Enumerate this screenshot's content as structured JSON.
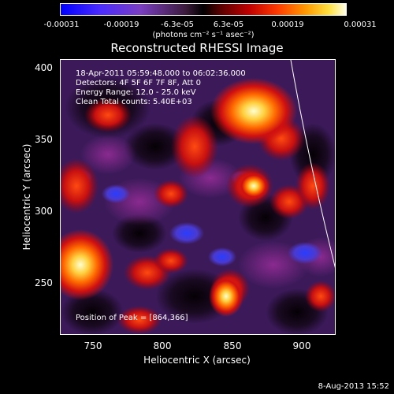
{
  "colorbar": {
    "ticks": [
      "-0.00031",
      "-0.00019",
      "-6.3e-05",
      "6.3e-05",
      "0.00019",
      "0.00031"
    ],
    "unit": "(photons cm⁻² s⁻¹ asec⁻²)"
  },
  "title": "Reconstructed RHESSI Image",
  "info": {
    "time_range": "18-Apr-2011 05:59:48.000 to 06:02:36.000",
    "detectors": "Detectors: 4F 5F 6F 7F 8F, Att 0",
    "energy": "Energy Range: 12.0 - 25.0 keV",
    "clean": "Clean     Total counts: 5.40E+03",
    "peak": "Position of Peak = [864,366]"
  },
  "axes": {
    "xlabel": "Heliocentric X (arcsec)",
    "ylabel": "Heliocentric Y (arcsec)",
    "xticks": [
      "750",
      "800",
      "850",
      "900"
    ],
    "yticks": [
      "400",
      "350",
      "300",
      "250"
    ]
  },
  "footer": {
    "date": "8-Aug-2013 15:52"
  },
  "colors": {
    "background": "#000000",
    "text": "#ffffff"
  }
}
